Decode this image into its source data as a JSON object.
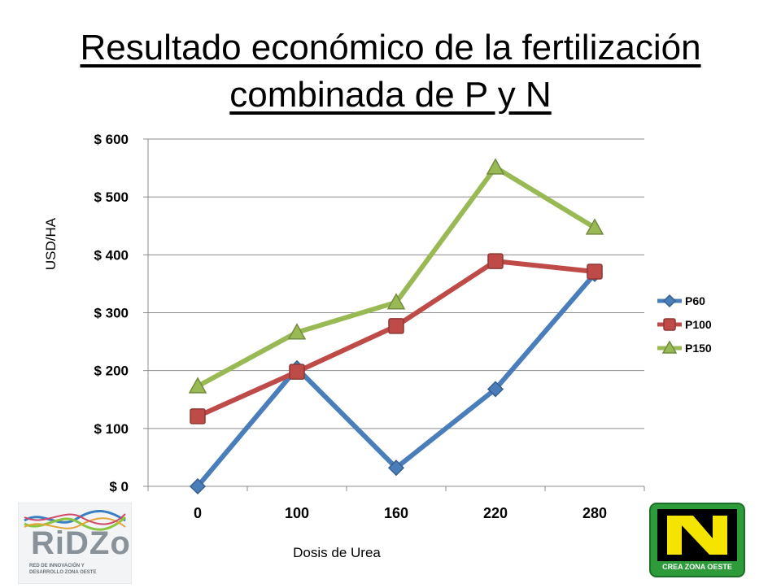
{
  "title_lines": [
    "Resultado económico de la fertilización",
    "combinada de P y N"
  ],
  "chart_data": {
    "type": "line",
    "title": "Resultado económico de la fertilización combinada de P y N",
    "xlabel": "Dosis de Urea",
    "ylabel": "USD/HA",
    "categories": [
      "0",
      "100",
      "160",
      "220",
      "280"
    ],
    "ylim": [
      0,
      600
    ],
    "yticks": [
      0,
      100,
      200,
      300,
      400,
      500,
      600
    ],
    "ytick_labels": [
      "$ 0",
      "$ 100",
      "$ 200",
      "$ 300",
      "$ 400",
      "$ 500",
      "$ 600"
    ],
    "grid": "horizontal",
    "legend_position": "right",
    "series": [
      {
        "name": "P60",
        "values": [
          0,
          204,
          32,
          168,
          367
        ],
        "color": "#4a7ebb",
        "marker": "diamond"
      },
      {
        "name": "P100",
        "values": [
          121,
          198,
          277,
          389,
          371
        ],
        "color": "#be4b48",
        "marker": "square"
      },
      {
        "name": "P150",
        "values": [
          173,
          266,
          318,
          551,
          447
        ],
        "color": "#98b954",
        "marker": "triangle"
      }
    ]
  },
  "logos": {
    "left": {
      "text": "RiDZo",
      "subtitle": "RED DE INNOVACIÓN Y DESARROLLO ZONA OESTE"
    },
    "right": {
      "text": "CREA ZONA OESTE"
    }
  }
}
